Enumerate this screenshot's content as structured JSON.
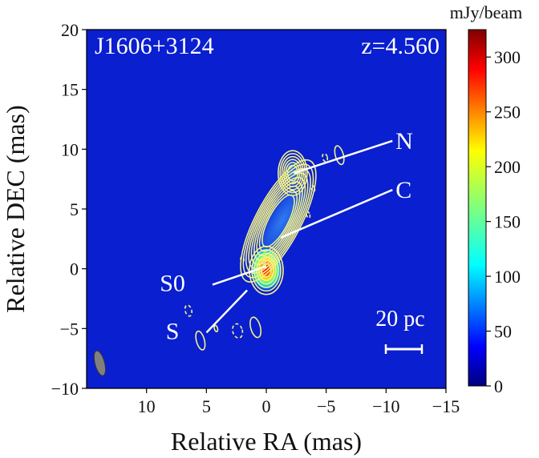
{
  "chart_data": {
    "type": "heatmap",
    "source_name": "J1606+3124",
    "redshift_label": "z=4.560",
    "xlabel": "Relative RA (mas)",
    "ylabel": "Relative DEC (mas)",
    "xlim": [
      15,
      -15
    ],
    "ylim": [
      -10,
      20
    ],
    "x_ticks": [
      10,
      5,
      0,
      -5,
      -10,
      -15
    ],
    "x_tick_labels": [
      "10",
      "5",
      "0",
      "−5",
      "−10",
      "−15"
    ],
    "y_ticks": [
      -10,
      -5,
      0,
      5,
      10,
      15,
      20
    ],
    "y_tick_labels": [
      "−10",
      "−5",
      "0",
      "5",
      "10",
      "15",
      "20"
    ],
    "colorbar": {
      "label": "mJy/beam",
      "range": [
        0,
        325
      ],
      "ticks": [
        0,
        50,
        100,
        150,
        200,
        250,
        300
      ],
      "tick_labels": [
        "0",
        "50",
        "100",
        "150",
        "200",
        "250",
        "300"
      ],
      "colormap": "jet"
    },
    "components": [
      {
        "name": "N",
        "ra": -2.3,
        "dec": 8.0,
        "label_ra": -10.8,
        "label_dec": 10.7
      },
      {
        "name": "C",
        "ra": -1.2,
        "dec": 2.6,
        "label_ra": -10.8,
        "label_dec": 6.6
      },
      {
        "name": "S0",
        "ra": 0.0,
        "dec": 0.2,
        "label_ra": 6.5,
        "label_dec": -1.2
      },
      {
        "name": "S",
        "ra": 1.6,
        "dec": -1.8,
        "label_ra": 7.0,
        "label_dec": -5.2
      }
    ],
    "peak_flux_mJy": 320,
    "scale_bar_label": "20 pc",
    "beam": {
      "ra": 13.9,
      "dec": -7.9
    }
  },
  "colors": {
    "background": "#0a1fd0",
    "contour": "#f2f28a",
    "annotation": "#ffffff",
    "beam": "#808080"
  }
}
